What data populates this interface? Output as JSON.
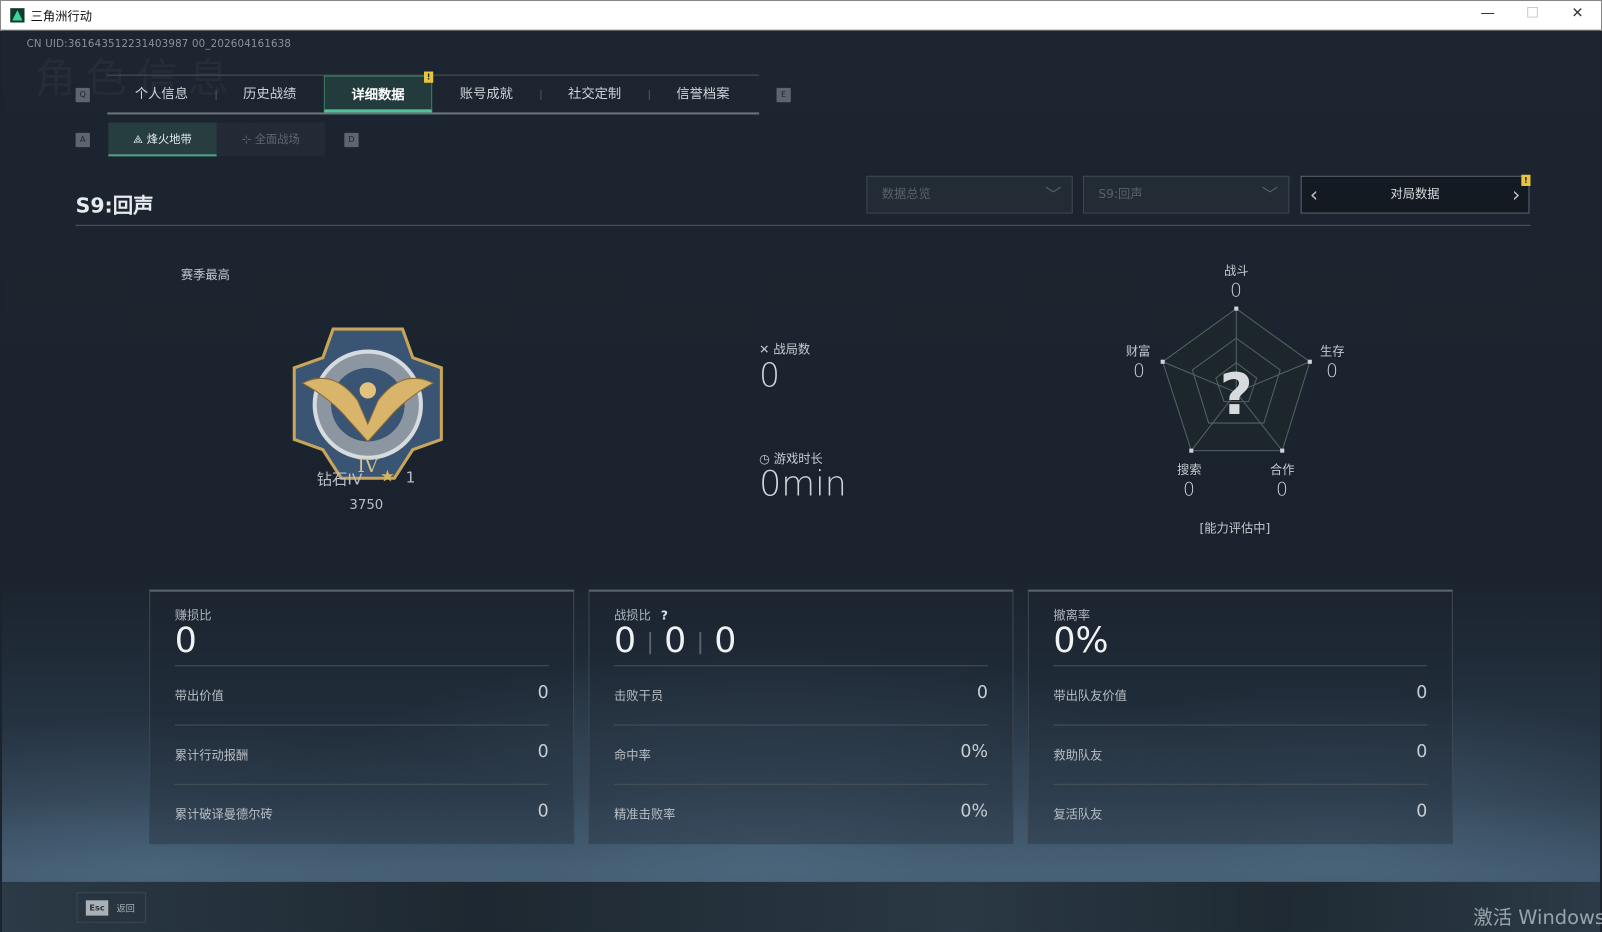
{
  "window": {
    "title": "三角洲行动",
    "minimize": "—",
    "maximize": "☐",
    "close": "✕"
  },
  "uid": "CN UID:361643512231403987 00_202604161638",
  "background_watermark": "角色信息",
  "keys": {
    "prev_tab": "Q",
    "next_tab": "E",
    "prev_sub": "A",
    "next_sub": "D"
  },
  "tabs": [
    {
      "label": "个人信息"
    },
    {
      "label": "历史战绩"
    },
    {
      "label": "详细数据",
      "active": true,
      "badge": "!"
    },
    {
      "label": "账号成就"
    },
    {
      "label": "社交定制"
    },
    {
      "label": "信誉档案"
    }
  ],
  "subtabs": [
    {
      "label": "烽火地带",
      "active": true
    },
    {
      "label": "全面战场"
    }
  ],
  "season_title": "S9:回声",
  "filters": {
    "view": "数据总览",
    "season": "S9:回声",
    "pager_label": "对局数据",
    "pager_badge": "!"
  },
  "rank": {
    "label": "赛季最高",
    "name": "钻石IV",
    "stars": "1",
    "score": "3750"
  },
  "summary": {
    "matches_label": "战局数",
    "matches": "0",
    "playtime_label": "游戏时长",
    "playtime": "0min"
  },
  "radar": {
    "status": "[能力评估中]",
    "center": "?",
    "axes": [
      {
        "label": "战斗",
        "value": "0"
      },
      {
        "label": "生存",
        "value": "0"
      },
      {
        "label": "合作",
        "value": "0"
      },
      {
        "label": "搜索",
        "value": "0"
      },
      {
        "label": "财富",
        "value": "0"
      }
    ]
  },
  "cards": [
    {
      "title": "赚损比",
      "big": "0",
      "rows": [
        {
          "k": "带出价值",
          "v": "0"
        },
        {
          "k": "累计行动报酬",
          "v": "0"
        },
        {
          "k": "累计破译曼德尔砖",
          "v": "0"
        }
      ]
    },
    {
      "title": "战损比",
      "help": "?",
      "big_parts": [
        "0",
        "0",
        "0"
      ],
      "rows": [
        {
          "k": "击败干员",
          "v": "0"
        },
        {
          "k": "命中率",
          "v": "0%"
        },
        {
          "k": "精准击败率",
          "v": "0%"
        }
      ]
    },
    {
      "title": "撤离率",
      "big": "0%",
      "rows": [
        {
          "k": "带出队友价值",
          "v": "0"
        },
        {
          "k": "救助队友",
          "v": "0"
        },
        {
          "k": "复活队友",
          "v": "0"
        }
      ]
    }
  ],
  "footer": {
    "esc_key": "Esc",
    "back": "返回",
    "activate_windows": "激活 Windows"
  },
  "colors": {
    "accent": "#4fc596",
    "badge": "#e8c440",
    "bg": "#1b232e"
  }
}
